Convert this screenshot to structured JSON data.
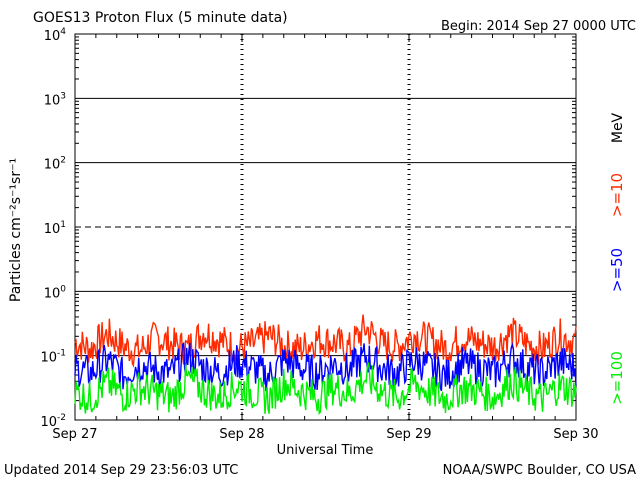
{
  "chart_data": {
    "type": "line",
    "title": "GOES13 Proton Flux (5 minute data)",
    "begin_label": "Begin: 2014 Sep 27 0000 UTC",
    "xlabel": "Universal Time",
    "ylabel": "Particles cm⁻²s⁻¹sr⁻¹",
    "y_scale": "log",
    "ylim": [
      0.01,
      10000
    ],
    "y_ticks": [
      {
        "base": "10",
        "exp": "-2",
        "value": 0.01
      },
      {
        "base": "10",
        "exp": "-1",
        "value": 0.1
      },
      {
        "base": "10",
        "exp": "0",
        "value": 1
      },
      {
        "base": "10",
        "exp": "1",
        "value": 10
      },
      {
        "base": "10",
        "exp": "2",
        "value": 100
      },
      {
        "base": "10",
        "exp": "3",
        "value": 1000
      },
      {
        "base": "10",
        "exp": "4",
        "value": 10000
      }
    ],
    "x_ticks": [
      "Sep 27",
      "Sep 28",
      "Sep 29",
      "Sep 30"
    ],
    "x_range_days": [
      0,
      3
    ],
    "reference_lines": [
      {
        "value": 1,
        "style": "solid"
      },
      {
        "value": 10,
        "style": "dashed"
      },
      {
        "value": 100,
        "style": "solid"
      },
      {
        "value": 1000,
        "style": "solid"
      },
      {
        "value": 0.1,
        "style": "solid"
      }
    ],
    "series": [
      {
        "name": ">=10",
        "color": "#ff2a00",
        "values": [
          0.15,
          0.12,
          0.2,
          0.13,
          0.11,
          0.18,
          0.14,
          0.12,
          0.22,
          0.16,
          0.12,
          0.14,
          0.19,
          0.13,
          0.12,
          0.17,
          0.15,
          0.12,
          0.25,
          0.14,
          0.13,
          0.2,
          0.16,
          0.12,
          0.18,
          0.15,
          0.13,
          0.21,
          0.14,
          0.12,
          0.19,
          0.15
        ]
      },
      {
        "name": ">=50",
        "color": "#0000ff",
        "values": [
          0.06,
          0.05,
          0.08,
          0.045,
          0.07,
          0.055,
          0.05,
          0.09,
          0.06,
          0.05,
          0.075,
          0.06,
          0.045,
          0.08,
          0.06,
          0.05,
          0.07,
          0.055,
          0.09,
          0.06,
          0.05,
          0.08,
          0.06,
          0.045,
          0.07,
          0.06,
          0.05,
          0.085,
          0.06,
          0.05,
          0.075,
          0.06
        ]
      },
      {
        "name": ">=100",
        "color": "#00ee00",
        "values": [
          0.025,
          0.02,
          0.035,
          0.022,
          0.03,
          0.025,
          0.02,
          0.04,
          0.026,
          0.021,
          0.032,
          0.025,
          0.02,
          0.036,
          0.026,
          0.021,
          0.03,
          0.024,
          0.042,
          0.026,
          0.021,
          0.034,
          0.025,
          0.02,
          0.03,
          0.026,
          0.021,
          0.038,
          0.025,
          0.02,
          0.032,
          0.025
        ]
      }
    ],
    "legend_unit": "MeV"
  },
  "footer": {
    "updated": "Updated 2014 Sep 29 23:56:03 UTC",
    "source": "NOAA/SWPC Boulder, CO USA"
  }
}
